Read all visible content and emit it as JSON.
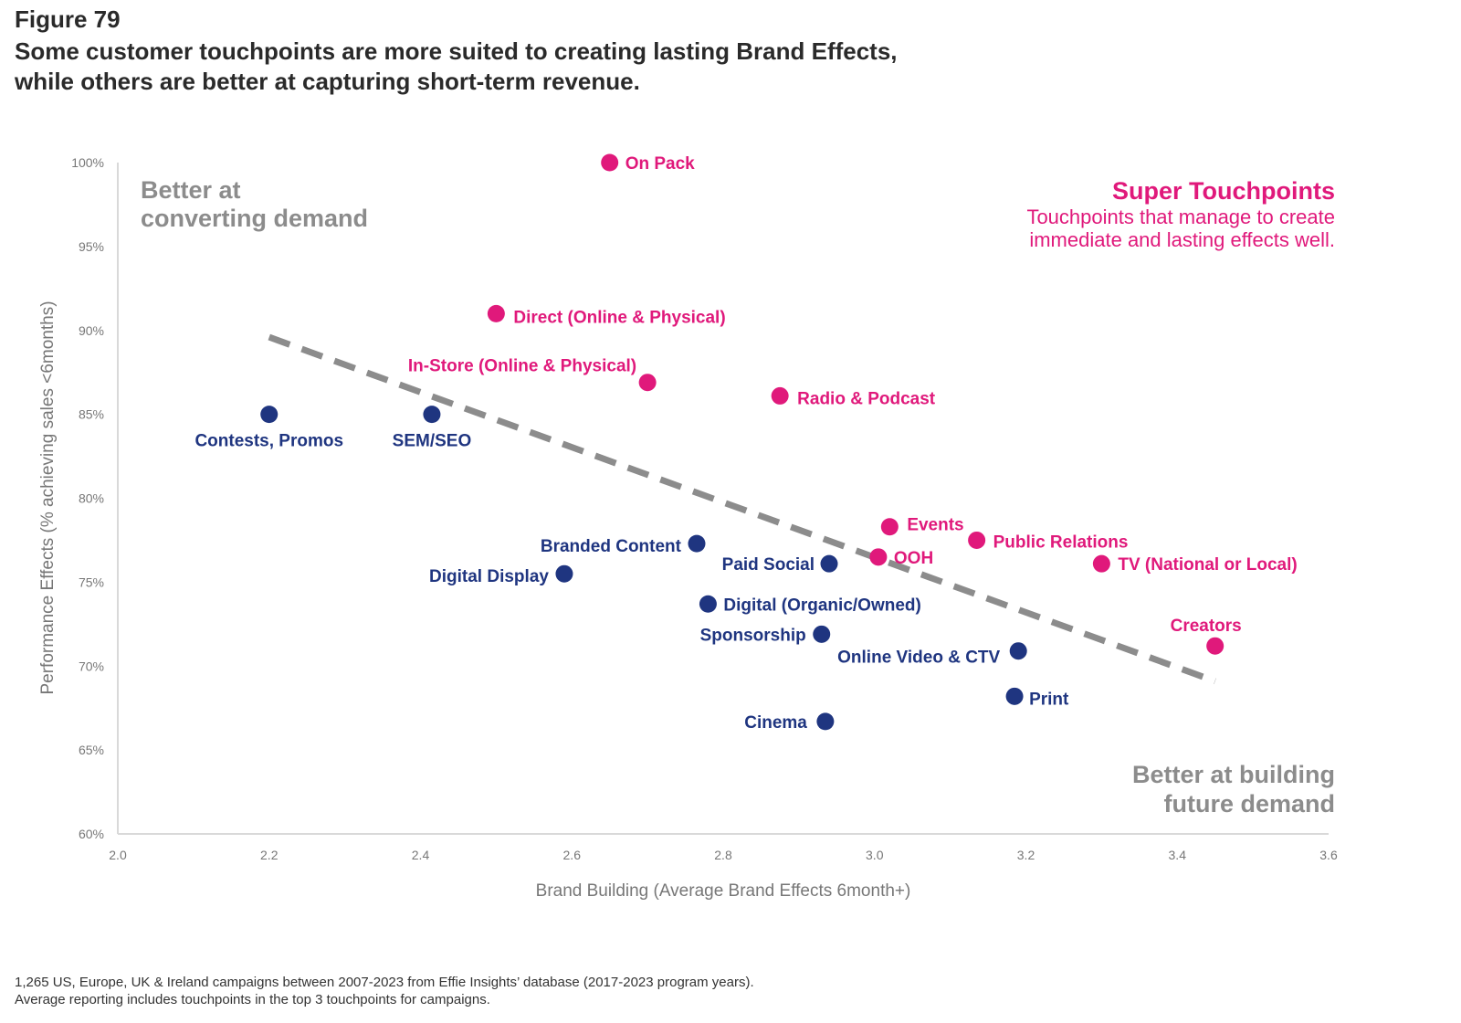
{
  "figure_label": "Figure 79",
  "title_lines": [
    "Some customer touchpoints are more suited to creating lasting Brand Effects,",
    "while others are better at capturing short-term revenue."
  ],
  "footnote_lines": [
    "1,265 US, Europe, UK & Ireland campaigns between 2007-2023 from Effie Insights’ database  (2017-2023 program years).",
    "Average reporting includes touchpoints in the top 3 touchpoints for campaigns."
  ],
  "colors": {
    "pink": "#e0197b",
    "navy": "#1f3580",
    "gray_text": "#8c8c8c",
    "trend": "#8c8c8c"
  },
  "quadrants": {
    "top_left": [
      "Better at",
      "converting demand"
    ],
    "top_right_title": "Super Touchpoints",
    "top_right_sub": [
      "Touchpoints that manage to create",
      "immediate and lasting effects well."
    ],
    "bottom_right": [
      "Better at building",
      "future demand"
    ]
  },
  "chart_data": {
    "type": "scatter",
    "xlabel": "Brand Building (Average Brand Effects 6month+)",
    "ylabel": "Performance Effects (% achieving sales <6months)",
    "xlim": [
      2.0,
      3.6
    ],
    "ylim": [
      60,
      100
    ],
    "xticks": [
      "2.0",
      "2.2",
      "2.4",
      "2.6",
      "2.8",
      "3.0",
      "3.2",
      "3.4",
      "3.6"
    ],
    "yticks": [
      "100%",
      "95%",
      "90%",
      "85%",
      "80%",
      "75%",
      "70%",
      "65%",
      "60%"
    ],
    "trendline": {
      "x": [
        2.2,
        3.45
      ],
      "y": [
        89.6,
        69.1
      ],
      "style": "dashed"
    },
    "points": [
      {
        "label": "On Pack",
        "x": 2.65,
        "y": 100.0,
        "group": "super"
      },
      {
        "label": "Direct (Online & Physical)",
        "x": 2.5,
        "y": 91.0,
        "group": "super"
      },
      {
        "label": "In-Store (Online & Physical)",
        "x": 2.7,
        "y": 86.9,
        "group": "super"
      },
      {
        "label": "Radio & Podcast",
        "x": 2.875,
        "y": 86.1,
        "group": "super"
      },
      {
        "label": "Events",
        "x": 3.02,
        "y": 78.3,
        "group": "super"
      },
      {
        "label": "OOH",
        "x": 3.005,
        "y": 76.5,
        "group": "super"
      },
      {
        "label": "Public Relations",
        "x": 3.135,
        "y": 77.5,
        "group": "super"
      },
      {
        "label": "TV (National or Local)",
        "x": 3.3,
        "y": 76.1,
        "group": "super"
      },
      {
        "label": "Creators",
        "x": 3.45,
        "y": 71.2,
        "group": "super"
      },
      {
        "label": "Contests, Promos",
        "x": 2.2,
        "y": 85.0,
        "group": "other"
      },
      {
        "label": "SEM/SEO",
        "x": 2.415,
        "y": 85.0,
        "group": "other"
      },
      {
        "label": "Branded Content",
        "x": 2.765,
        "y": 77.3,
        "group": "other"
      },
      {
        "label": "Digital Display",
        "x": 2.59,
        "y": 75.5,
        "group": "other"
      },
      {
        "label": "Paid Social",
        "x": 2.94,
        "y": 76.1,
        "group": "other"
      },
      {
        "label": "Digital (Organic/Owned)",
        "x": 2.78,
        "y": 73.7,
        "group": "other"
      },
      {
        "label": "Sponsorship",
        "x": 2.93,
        "y": 71.9,
        "group": "other"
      },
      {
        "label": "Online Video & CTV",
        "x": 3.19,
        "y": 70.9,
        "group": "other"
      },
      {
        "label": "Print",
        "x": 3.185,
        "y": 68.2,
        "group": "other"
      },
      {
        "label": "Cinema",
        "x": 2.935,
        "y": 66.7,
        "group": "other"
      }
    ]
  }
}
